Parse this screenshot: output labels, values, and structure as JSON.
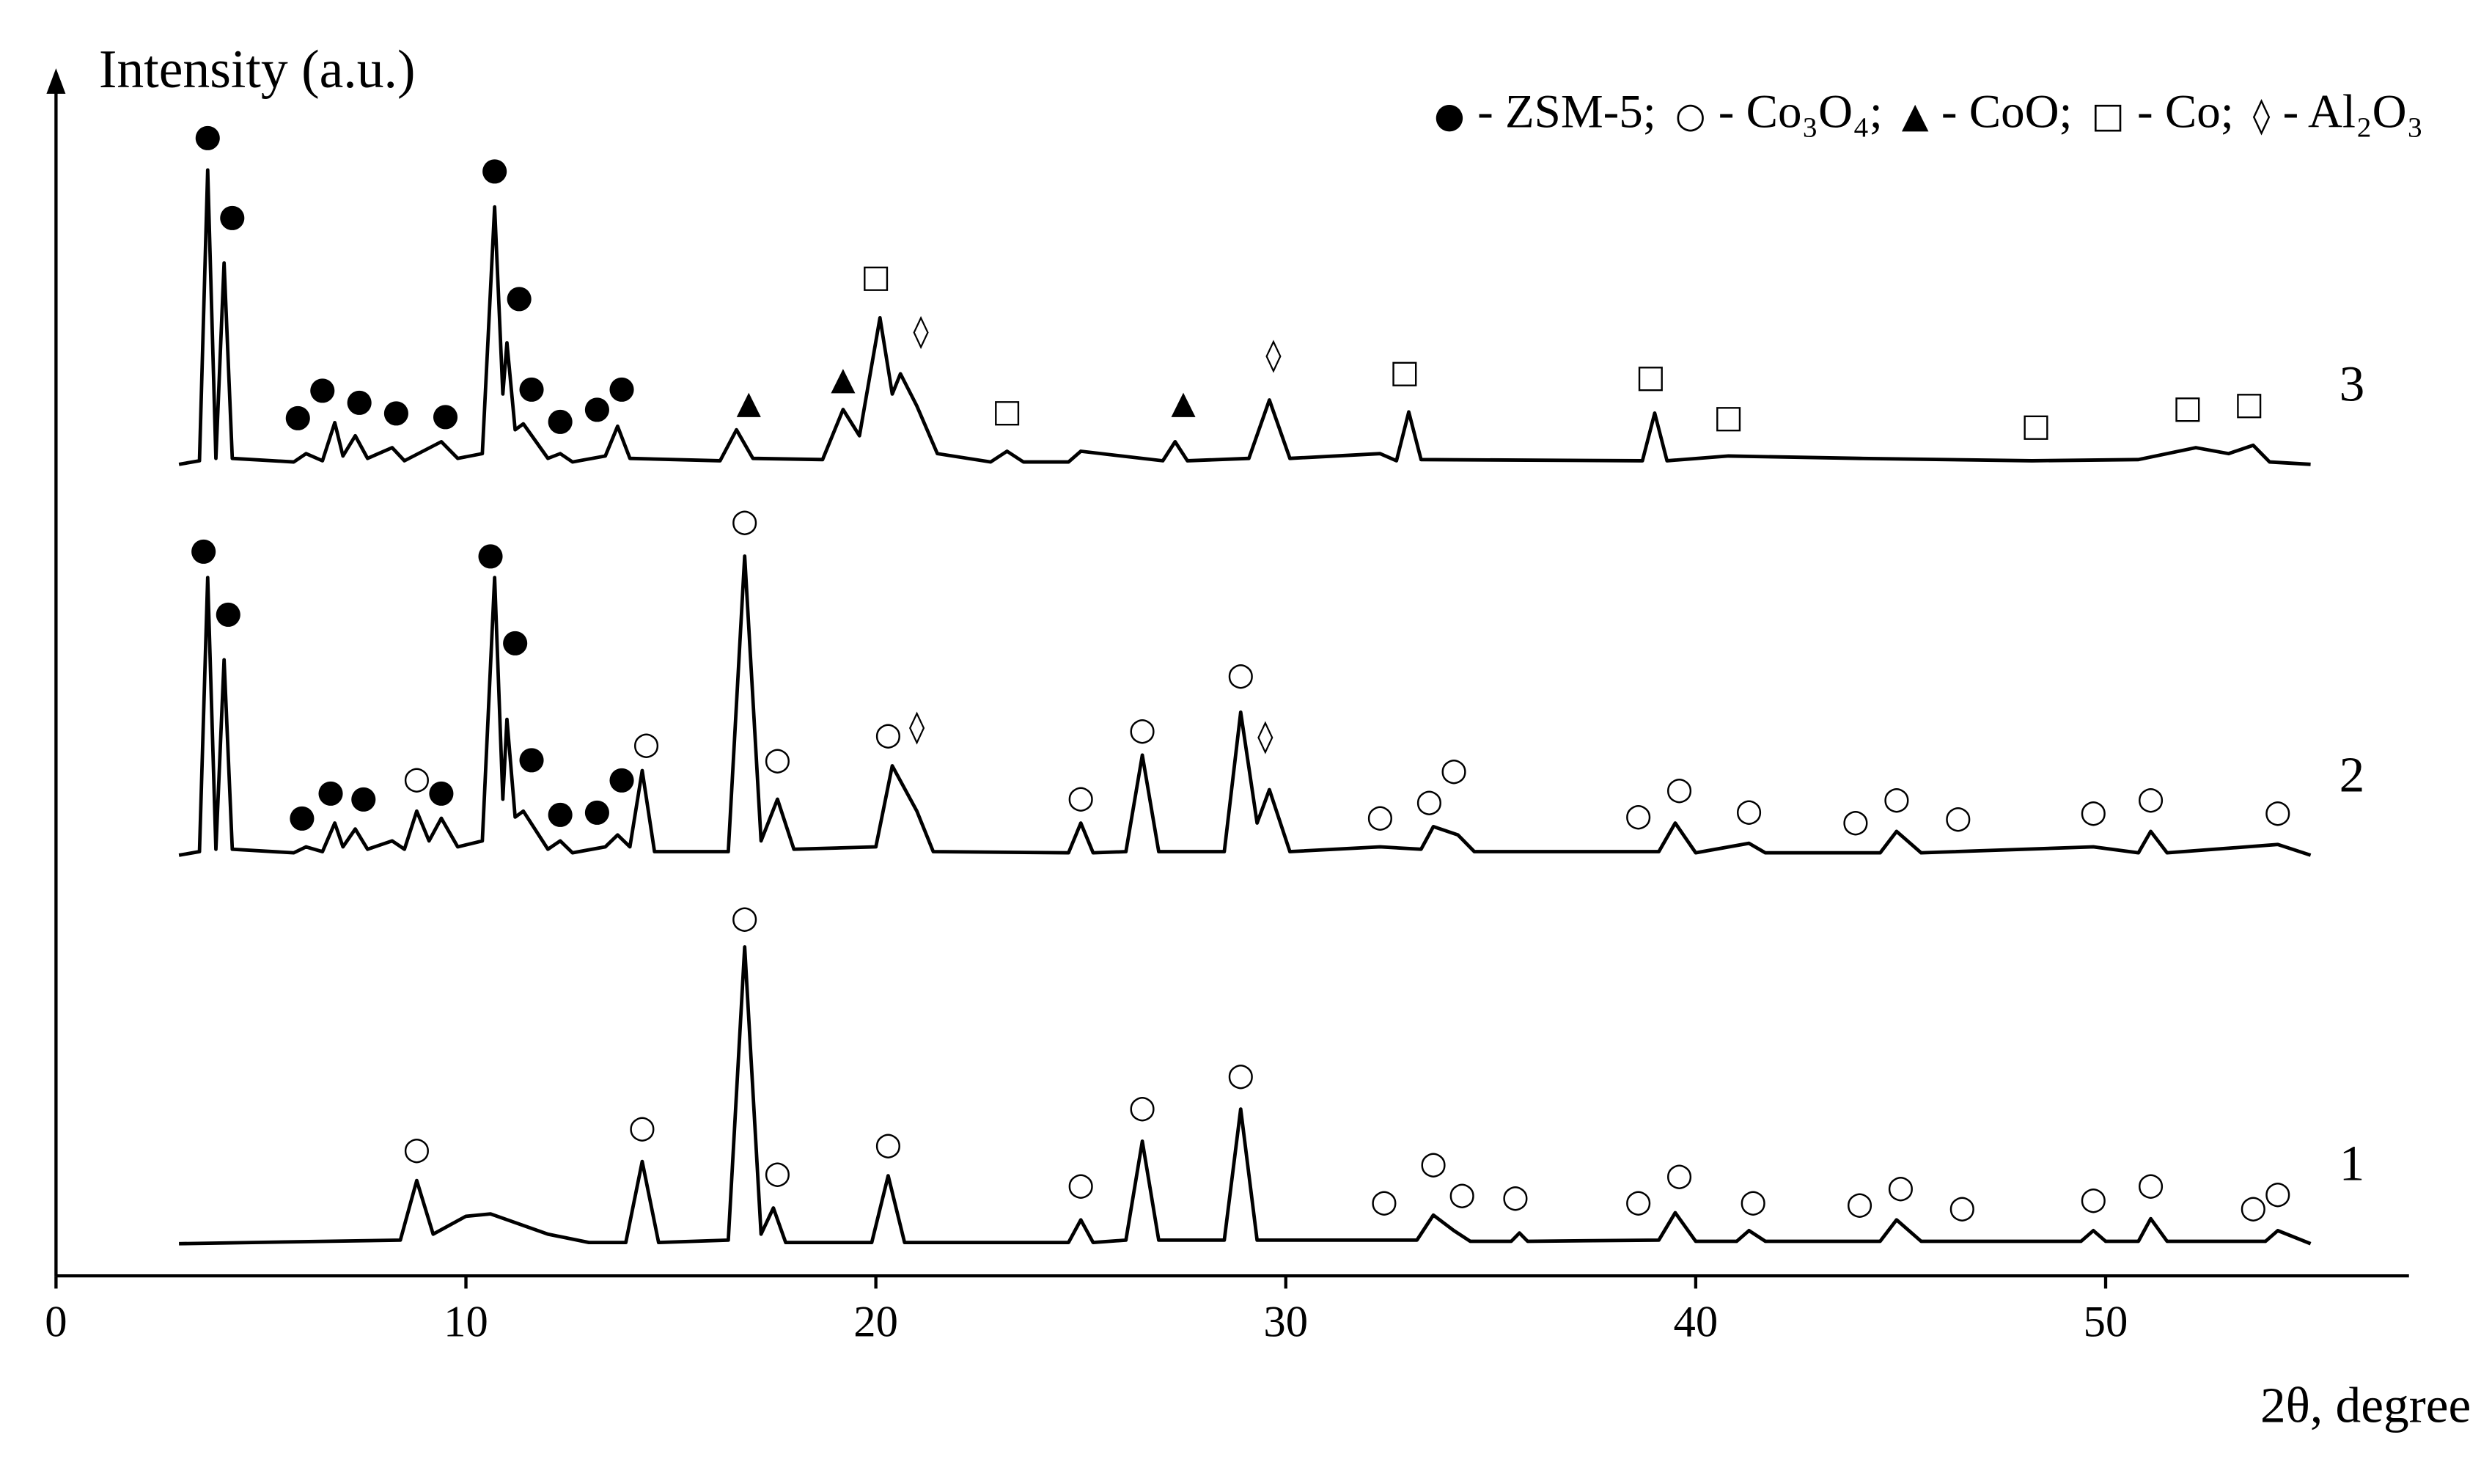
{
  "chart_data": {
    "type": "line",
    "x_label": "2θ, degree",
    "y_label": "Intensity (a.u.)",
    "xlim": [
      0,
      57.4
    ],
    "ylim": [
      0,
      100
    ],
    "xticks": [
      0,
      10,
      20,
      30,
      40,
      50
    ],
    "color": "#000000",
    "legend": [
      {
        "symbol": "●",
        "label": "- ZSM-5;"
      },
      {
        "symbol": "○",
        "label": "- Co₃O₄;"
      },
      {
        "symbol": "▲",
        "label": "- CoO;"
      },
      {
        "symbol": "□",
        "label": "- Co;"
      },
      {
        "symbol": "◊",
        "label": "- Al₂O₃"
      }
    ],
    "legend_position": "top-right",
    "series": [
      {
        "name": "1",
        "color": "#000000",
        "x": [
          3,
          8.4,
          8.8,
          9.2,
          10.0,
          10.6,
          12,
          13,
          13.9,
          14.3,
          14.7,
          16.4,
          16.8,
          17.2,
          17.5,
          17.8,
          19.9,
          20.3,
          20.7,
          24.7,
          25.0,
          25.3,
          26.1,
          26.5,
          26.9,
          28.5,
          28.9,
          29.3,
          33.2,
          33.6,
          34.1,
          34.5,
          35.5,
          35.7,
          35.9,
          39.1,
          39.5,
          40,
          41.0,
          41.3,
          41.7,
          44.5,
          44.9,
          45.5,
          49.4,
          49.7,
          50,
          50.8,
          51.1,
          51.5,
          53.9,
          54.2,
          55
        ],
        "values": [
          2.7,
          3.0,
          8.0,
          3.5,
          5.0,
          5.2,
          3.5,
          2.8,
          2.8,
          9.6,
          2.8,
          3.0,
          27.6,
          3.5,
          5.7,
          2.8,
          2.8,
          8.4,
          2.8,
          2.8,
          4.7,
          2.8,
          3.0,
          11.3,
          3.0,
          3.0,
          14.0,
          3.0,
          3.0,
          5.1,
          3.8,
          2.9,
          2.9,
          3.6,
          2.9,
          3.0,
          5.3,
          2.9,
          2.9,
          3.8,
          2.9,
          2.9,
          4.7,
          2.9,
          2.9,
          3.8,
          2.9,
          2.9,
          4.8,
          2.9,
          2.9,
          3.8,
          2.7
        ],
        "markers": [
          {
            "symbol": "○",
            "x": 8.8,
            "y": 10.5
          },
          {
            "symbol": "○",
            "x": 14.3,
            "y": 12.3
          },
          {
            "symbol": "○",
            "x": 16.8,
            "y": 29.9
          },
          {
            "symbol": "○",
            "x": 17.6,
            "y": 8.5
          },
          {
            "symbol": "○",
            "x": 20.3,
            "y": 10.9
          },
          {
            "symbol": "○",
            "x": 25.0,
            "y": 7.5
          },
          {
            "symbol": "○",
            "x": 26.5,
            "y": 14.0
          },
          {
            "symbol": "○",
            "x": 28.9,
            "y": 16.7
          },
          {
            "symbol": "○",
            "x": 32.4,
            "y": 6.1
          },
          {
            "symbol": "○",
            "x": 33.6,
            "y": 9.3
          },
          {
            "symbol": "○",
            "x": 34.3,
            "y": 6.7
          },
          {
            "symbol": "○",
            "x": 35.6,
            "y": 6.5
          },
          {
            "symbol": "○",
            "x": 38.6,
            "y": 6.1
          },
          {
            "symbol": "○",
            "x": 39.6,
            "y": 8.3
          },
          {
            "symbol": "○",
            "x": 41.4,
            "y": 6.1
          },
          {
            "symbol": "○",
            "x": 44.0,
            "y": 5.9
          },
          {
            "symbol": "○",
            "x": 45.0,
            "y": 7.3
          },
          {
            "symbol": "○",
            "x": 46.5,
            "y": 5.6
          },
          {
            "symbol": "○",
            "x": 49.7,
            "y": 6.3
          },
          {
            "symbol": "○",
            "x": 51.1,
            "y": 7.5
          },
          {
            "symbol": "○",
            "x": 53.6,
            "y": 5.6
          },
          {
            "symbol": "○",
            "x": 54.2,
            "y": 6.8
          }
        ]
      },
      {
        "name": "2",
        "color": "#000000",
        "x": [
          3,
          3.5,
          3.7,
          3.9,
          4.1,
          4.3,
          5.8,
          6.1,
          6.5,
          6.8,
          7.0,
          7.3,
          7.6,
          8.2,
          8.5,
          8.8,
          9.1,
          9.4,
          9.8,
          10.4,
          10.7,
          10.9,
          11.0,
          11.2,
          11.4,
          12.0,
          12.3,
          12.6,
          13.4,
          13.7,
          14.0,
          14.3,
          14.6,
          16.4,
          16.8,
          17.2,
          17.6,
          18.0,
          20.0,
          20.4,
          21.0,
          21.4,
          24.7,
          25.0,
          25.3,
          26.1,
          26.5,
          26.9,
          28.5,
          28.9,
          29.3,
          29.6,
          30.1,
          32.3,
          33.3,
          33.6,
          34.2,
          34.6,
          39.1,
          39.5,
          40,
          41.3,
          41.7,
          44.5,
          44.9,
          45.5,
          49.7,
          50.8,
          51.1,
          51.5,
          54.2,
          55
        ],
        "values": [
          35.3,
          35.6,
          58.6,
          35.8,
          51.7,
          35.8,
          35.5,
          36.0,
          35.6,
          38.0,
          36.0,
          37.5,
          35.8,
          36.5,
          35.8,
          39.0,
          36.5,
          38.4,
          36.0,
          36.5,
          58.6,
          40.0,
          46.7,
          38.5,
          39.0,
          35.8,
          36.5,
          35.5,
          36.0,
          37.0,
          36.0,
          42.4,
          35.6,
          35.6,
          60.4,
          36.5,
          40.0,
          35.8,
          36.0,
          42.8,
          39.0,
          35.6,
          35.5,
          38.0,
          35.5,
          35.6,
          43.7,
          35.6,
          35.6,
          47.3,
          38.0,
          40.8,
          35.6,
          36.0,
          35.8,
          37.7,
          37.0,
          35.6,
          35.6,
          38.0,
          35.5,
          36.3,
          35.5,
          35.5,
          37.3,
          35.5,
          36.0,
          35.5,
          37.3,
          35.5,
          36.2,
          35.3
        ],
        "markers": [
          {
            "symbol": "●",
            "x": 3.6,
            "y": 60.8
          },
          {
            "symbol": "●",
            "x": 4.2,
            "y": 55.5
          },
          {
            "symbol": "●",
            "x": 6.0,
            "y": 38.4
          },
          {
            "symbol": "●",
            "x": 6.7,
            "y": 40.5
          },
          {
            "symbol": "●",
            "x": 7.5,
            "y": 40.0
          },
          {
            "symbol": "○",
            "x": 8.8,
            "y": 41.6
          },
          {
            "symbol": "●",
            "x": 9.4,
            "y": 40.5
          },
          {
            "symbol": "●",
            "x": 10.6,
            "y": 60.4
          },
          {
            "symbol": "●",
            "x": 11.2,
            "y": 53.1
          },
          {
            "symbol": "●",
            "x": 11.6,
            "y": 43.3
          },
          {
            "symbol": "●",
            "x": 12.3,
            "y": 38.7
          },
          {
            "symbol": "●",
            "x": 13.2,
            "y": 38.9
          },
          {
            "symbol": "●",
            "x": 13.8,
            "y": 41.6
          },
          {
            "symbol": "○",
            "x": 14.4,
            "y": 44.5
          },
          {
            "symbol": "○",
            "x": 16.8,
            "y": 63.2
          },
          {
            "symbol": "○",
            "x": 17.6,
            "y": 43.2
          },
          {
            "symbol": "○",
            "x": 20.3,
            "y": 45.3
          },
          {
            "symbol": "◊",
            "x": 21.0,
            "y": 45.9
          },
          {
            "symbol": "○",
            "x": 25.0,
            "y": 40.0
          },
          {
            "symbol": "○",
            "x": 26.5,
            "y": 45.7
          },
          {
            "symbol": "○",
            "x": 28.9,
            "y": 50.3
          },
          {
            "symbol": "◊",
            "x": 29.5,
            "y": 45.1
          },
          {
            "symbol": "○",
            "x": 32.3,
            "y": 38.4
          },
          {
            "symbol": "○",
            "x": 33.5,
            "y": 39.7
          },
          {
            "symbol": "○",
            "x": 34.1,
            "y": 42.3
          },
          {
            "symbol": "○",
            "x": 38.6,
            "y": 38.5
          },
          {
            "symbol": "○",
            "x": 39.6,
            "y": 40.7
          },
          {
            "symbol": "○",
            "x": 41.3,
            "y": 38.9
          },
          {
            "symbol": "○",
            "x": 43.9,
            "y": 38.0
          },
          {
            "symbol": "○",
            "x": 44.9,
            "y": 39.9
          },
          {
            "symbol": "○",
            "x": 46.4,
            "y": 38.3
          },
          {
            "symbol": "○",
            "x": 49.7,
            "y": 38.8
          },
          {
            "symbol": "○",
            "x": 51.1,
            "y": 39.9
          },
          {
            "symbol": "○",
            "x": 54.2,
            "y": 38.8
          }
        ]
      },
      {
        "name": "3",
        "color": "#000000",
        "x": [
          3,
          3.5,
          3.7,
          3.9,
          4.1,
          4.3,
          5.8,
          6.1,
          6.5,
          6.8,
          7.0,
          7.3,
          7.6,
          8.2,
          8.5,
          9.4,
          9.8,
          10.4,
          10.7,
          10.9,
          11.0,
          11.2,
          11.4,
          12.0,
          12.3,
          12.6,
          13.4,
          13.7,
          14.0,
          16.2,
          16.6,
          17.0,
          18.7,
          19.2,
          19.6,
          20.1,
          20.4,
          20.6,
          21.0,
          21.5,
          22.8,
          23.2,
          23.6,
          24.7,
          25.0,
          27.0,
          27.3,
          27.6,
          29.1,
          29.6,
          30.1,
          32.3,
          32.7,
          33.0,
          33.3,
          38.7,
          39.0,
          39.3,
          40.8,
          44.0,
          48.2,
          50.8,
          52.2,
          53.0,
          53.6,
          54.0,
          55
        ],
        "values": [
          68.1,
          68.4,
          92.8,
          68.6,
          85.0,
          68.6,
          68.3,
          69.0,
          68.4,
          71.6,
          68.8,
          70.5,
          68.6,
          69.5,
          68.4,
          70.0,
          68.6,
          69.0,
          89.7,
          74.0,
          78.3,
          71.0,
          71.5,
          68.6,
          69.0,
          68.3,
          68.8,
          71.3,
          68.6,
          68.4,
          71.0,
          68.6,
          68.5,
          72.7,
          70.5,
          80.4,
          74.0,
          75.7,
          73.0,
          69.0,
          68.3,
          69.2,
          68.3,
          68.3,
          69.2,
          68.4,
          70.0,
          68.4,
          68.6,
          73.5,
          68.6,
          69.0,
          68.4,
          72.5,
          68.5,
          68.4,
          72.4,
          68.4,
          68.8,
          68.6,
          68.4,
          68.5,
          69.5,
          69.0,
          69.7,
          68.3,
          68.1
        ],
        "markers": [
          {
            "symbol": "●",
            "x": 3.7,
            "y": 95.5
          },
          {
            "symbol": "●",
            "x": 4.3,
            "y": 88.8
          },
          {
            "symbol": "●",
            "x": 5.9,
            "y": 72.0
          },
          {
            "symbol": "●",
            "x": 6.5,
            "y": 74.3
          },
          {
            "symbol": "●",
            "x": 7.4,
            "y": 73.3
          },
          {
            "symbol": "●",
            "x": 8.3,
            "y": 72.4
          },
          {
            "symbol": "●",
            "x": 9.5,
            "y": 72.1
          },
          {
            "symbol": "●",
            "x": 10.7,
            "y": 92.7
          },
          {
            "symbol": "●",
            "x": 11.3,
            "y": 82.0
          },
          {
            "symbol": "●",
            "x": 11.6,
            "y": 74.4
          },
          {
            "symbol": "●",
            "x": 12.3,
            "y": 71.7
          },
          {
            "symbol": "●",
            "x": 13.2,
            "y": 72.7
          },
          {
            "symbol": "●",
            "x": 13.8,
            "y": 74.4
          },
          {
            "symbol": "▲",
            "x": 16.9,
            "y": 73.1
          },
          {
            "symbol": "▲",
            "x": 19.2,
            "y": 75.1
          },
          {
            "symbol": "□",
            "x": 20.0,
            "y": 83.7
          },
          {
            "symbol": "◊",
            "x": 21.1,
            "y": 79.1
          },
          {
            "symbol": "□",
            "x": 23.2,
            "y": 72.4
          },
          {
            "symbol": "▲",
            "x": 27.5,
            "y": 73.1
          },
          {
            "symbol": "◊",
            "x": 29.7,
            "y": 77.1
          },
          {
            "symbol": "□",
            "x": 32.9,
            "y": 75.7
          },
          {
            "symbol": "□",
            "x": 38.9,
            "y": 75.3
          },
          {
            "symbol": "□",
            "x": 40.8,
            "y": 71.9
          },
          {
            "symbol": "□",
            "x": 48.3,
            "y": 71.2
          },
          {
            "symbol": "□",
            "x": 52.0,
            "y": 72.7
          },
          {
            "symbol": "□",
            "x": 53.5,
            "y": 73.0
          }
        ]
      }
    ]
  }
}
